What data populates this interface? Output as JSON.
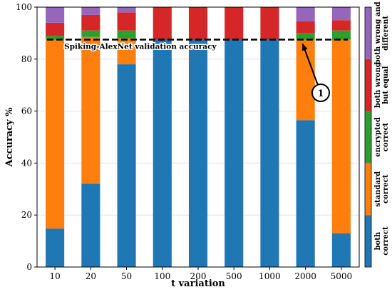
{
  "chart_data": {
    "type": "bar",
    "stacked": true,
    "xlabel": "t variation",
    "ylabel": "Accuracy %",
    "ylim": [
      0,
      100
    ],
    "yticks": [
      0,
      20,
      40,
      60,
      80,
      100
    ],
    "grid": true,
    "categories": [
      "10",
      "20",
      "50",
      "100",
      "200",
      "500",
      "1000",
      "2000",
      "5000"
    ],
    "series": [
      {
        "name": "both correct",
        "color": "#1f77b4",
        "values": [
          14.8,
          32.0,
          78.0,
          87.5,
          87.5,
          87.5,
          87.5,
          56.5,
          13.0
        ]
      },
      {
        "name": "standard correct",
        "color": "#ff7f0e",
        "values": [
          72.7,
          56.5,
          10.0,
          0.0,
          0.0,
          0.0,
          0.0,
          31.0,
          74.5
        ]
      },
      {
        "name": "encrypted correct",
        "color": "#2ca02c",
        "values": [
          1.5,
          2.5,
          3.0,
          0.0,
          0.0,
          0.0,
          0.0,
          2.5,
          3.5
        ]
      },
      {
        "name": "both wrong but equal",
        "color": "#d62728",
        "values": [
          5.0,
          6.0,
          7.0,
          12.5,
          12.5,
          12.5,
          12.5,
          4.5,
          4.0
        ]
      },
      {
        "name": "both wrong and different",
        "color": "#9467bd",
        "values": [
          6.0,
          3.0,
          2.0,
          0.0,
          0.0,
          0.0,
          0.0,
          5.5,
          5.0
        ]
      }
    ],
    "colorbar_labels": [
      [
        "both",
        "correct"
      ],
      [
        "standard",
        "correct"
      ],
      [
        "encrypted",
        "correct"
      ],
      [
        "both wrong",
        "but equal"
      ],
      [
        "both wrong and",
        "different"
      ]
    ],
    "reference_line": {
      "label": "Spiking-AlexNet validation accuracy",
      "value": 87.5
    },
    "annotation": {
      "text": "1",
      "target_category": "2000"
    }
  }
}
